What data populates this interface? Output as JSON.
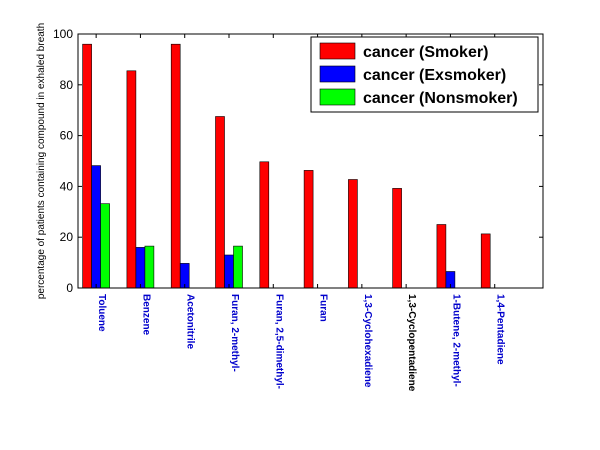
{
  "chart_data": {
    "type": "bar",
    "title": "",
    "xlabel": "",
    "ylabel": "percentage of patients containing compound in exhaled breath",
    "ylim": [
      0,
      100
    ],
    "yticks": [
      0,
      20,
      40,
      60,
      80,
      100
    ],
    "grid": false,
    "legend_position": "top-right",
    "categories": [
      "Toluene",
      "Benzene",
      "Acetonitrile",
      "Furan, 2-methyl-",
      "Furan, 2,5-dimethyl-",
      "Furan",
      "1,3-Cyclohexadiene",
      "1,3-Cyclopentadiene",
      "1-Butene, 2-methyl-",
      "1,4-Pentadiene"
    ],
    "category_colors": [
      "#0000cc",
      "#0000cc",
      "#0000cc",
      "#0000cc",
      "#0000cc",
      "#0000cc",
      "#0000cc",
      "#000000",
      "#0000cc",
      "#0000cc"
    ],
    "series": [
      {
        "name": "cancer (Smoker)",
        "color": "#ff0000",
        "values": [
          96,
          85.5,
          96,
          67.5,
          49.7,
          46.3,
          42.7,
          39.2,
          25,
          21.3
        ]
      },
      {
        "name": "cancer (Exsmoker)",
        "color": "#0000ff",
        "values": [
          48.2,
          16,
          9.7,
          13,
          0,
          0,
          0,
          0,
          6.5,
          0
        ]
      },
      {
        "name": "cancer (Nonsmoker)",
        "color": "#00ff00",
        "values": [
          33.2,
          16.5,
          0,
          16.5,
          0,
          0,
          0,
          0,
          0,
          0
        ]
      }
    ]
  }
}
